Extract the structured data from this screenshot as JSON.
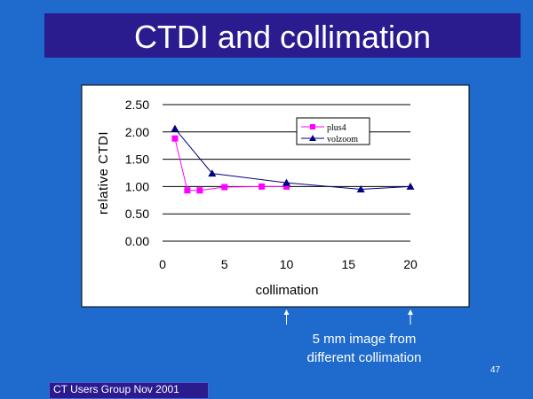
{
  "slide": {
    "title": "CTDI and collimation",
    "note_line1": "5 mm image from",
    "note_line2": "different collimation",
    "footer": "CT Users Group Nov 2001",
    "page_number": "47",
    "colors": {
      "background": "#1e6bcd",
      "title_bar": "#2a1b8f",
      "plot_area": "#ffffff"
    }
  },
  "chart_data": {
    "type": "line",
    "title": "",
    "xlabel": "collimation",
    "ylabel": "relative CTDI",
    "xlim": [
      0,
      20
    ],
    "ylim": [
      0,
      2.5
    ],
    "x_ticks": [
      "0",
      "5",
      "10",
      "15",
      "20"
    ],
    "y_ticks": [
      "0.00",
      "0.50",
      "1.00",
      "1.50",
      "2.00",
      "2.50"
    ],
    "grid": "horizontal",
    "legend_position": "top-right",
    "series": [
      {
        "name": "plus4",
        "color": "#ff00ff",
        "marker": "square",
        "points": [
          [
            1,
            1.88
          ],
          [
            2,
            0.93
          ],
          [
            3,
            0.93
          ],
          [
            5,
            0.99
          ],
          [
            8,
            1.0
          ],
          [
            10,
            1.0
          ]
        ]
      },
      {
        "name": "volzoom",
        "color": "#000080",
        "marker": "triangle",
        "points": [
          [
            1,
            2.06
          ],
          [
            4,
            1.24
          ],
          [
            10,
            1.07
          ],
          [
            16,
            0.95
          ],
          [
            20,
            1.0
          ]
        ]
      }
    ],
    "annotations": [
      {
        "x": 10,
        "label": "arrow-up"
      },
      {
        "x": 20,
        "label": "arrow-up"
      }
    ]
  }
}
